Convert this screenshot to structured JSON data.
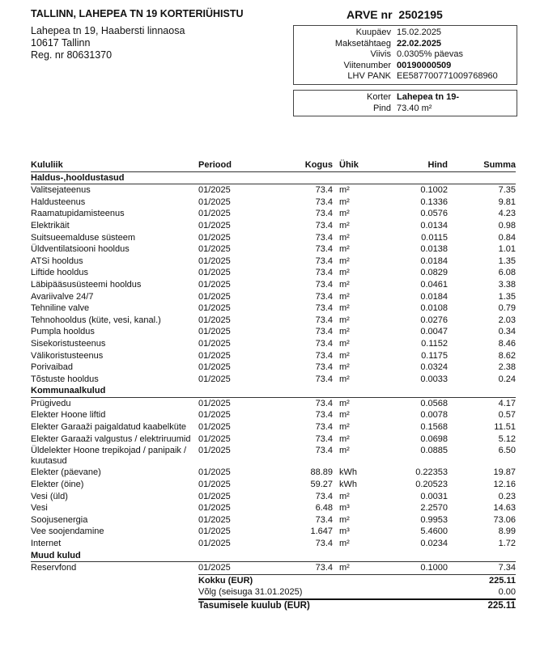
{
  "header": {
    "org": "TALLINN, LAHEPEA TN 19 KORTERIÜHISTU",
    "address": [
      "Lahepea tn 19, Haabersti linnaosa",
      "10617 Tallinn",
      "Reg. nr 80631370"
    ],
    "invoice_label": "ARVE nr",
    "invoice_number": "2502195"
  },
  "info": [
    {
      "label": "Kuupäev",
      "value": "15.02.2025"
    },
    {
      "label": "Maksetähtaeg",
      "value": "22.02.2025",
      "bold": true
    },
    {
      "label": "Viivis",
      "value": "0.0305% päevas"
    },
    {
      "label": "Viitenumber",
      "value": "00190000509",
      "bold": true
    },
    {
      "label": "LHV PANK",
      "value": "EE587700771009768960"
    }
  ],
  "apartment": [
    {
      "label": "Korter",
      "value": "Lahepea tn 19-",
      "bold": true
    },
    {
      "label": "Pind",
      "value": "73.40 m²"
    }
  ],
  "table": {
    "columns": [
      "Kululiik",
      "Periood",
      "Kogus",
      "Ühik",
      "Hind",
      "Summa"
    ],
    "sections": [
      {
        "title": "Haldus-,hooldustasud",
        "rows": [
          [
            "Valitsejateenus",
            "01/2025",
            "73.4",
            "m²",
            "0.1002",
            "7.35"
          ],
          [
            "Haldusteenus",
            "01/2025",
            "73.4",
            "m²",
            "0.1336",
            "9.81"
          ],
          [
            "Raamatupidamisteenus",
            "01/2025",
            "73.4",
            "m²",
            "0.0576",
            "4.23"
          ],
          [
            "Elektrikäit",
            "01/2025",
            "73.4",
            "m²",
            "0.0134",
            "0.98"
          ],
          [
            "Suitsueemalduse süsteem",
            "01/2025",
            "73.4",
            "m²",
            "0.0115",
            "0.84"
          ],
          [
            "Üldventilatsiooni hooldus",
            "01/2025",
            "73.4",
            "m²",
            "0.0138",
            "1.01"
          ],
          [
            "ATSi hooldus",
            "01/2025",
            "73.4",
            "m²",
            "0.0184",
            "1.35"
          ],
          [
            "Liftide hooldus",
            "01/2025",
            "73.4",
            "m²",
            "0.0829",
            "6.08"
          ],
          [
            "Läbipääsusüsteemi hooldus",
            "01/2025",
            "73.4",
            "m²",
            "0.0461",
            "3.38"
          ],
          [
            "Avariivalve 24/7",
            "01/2025",
            "73.4",
            "m²",
            "0.0184",
            "1.35"
          ],
          [
            "Tehniline valve",
            "01/2025",
            "73.4",
            "m²",
            "0.0108",
            "0.79"
          ],
          [
            "Tehnohooldus (küte, vesi, kanal.)",
            "01/2025",
            "73.4",
            "m²",
            "0.0276",
            "2.03"
          ],
          [
            "Pumpla hooldus",
            "01/2025",
            "73.4",
            "m²",
            "0.0047",
            "0.34"
          ],
          [
            "Sisekoristusteenus",
            "01/2025",
            "73.4",
            "m²",
            "0.1152",
            "8.46"
          ],
          [
            "Välikoristusteenus",
            "01/2025",
            "73.4",
            "m²",
            "0.1175",
            "8.62"
          ],
          [
            "Porivaibad",
            "01/2025",
            "73.4",
            "m²",
            "0.0324",
            "2.38"
          ],
          [
            "Tõstuste hooldus",
            "01/2025",
            "73.4",
            "m²",
            "0.0033",
            "0.24"
          ]
        ]
      },
      {
        "title": "Kommunaalkulud",
        "rows": [
          [
            "Prügivedu",
            "01/2025",
            "73.4",
            "m²",
            "0.0568",
            "4.17"
          ],
          [
            "Elekter Hoone liftid",
            "01/2025",
            "73.4",
            "m²",
            "0.0078",
            "0.57"
          ],
          [
            "Elekter Garaaži paigaldatud kaabelküte",
            "01/2025",
            "73.4",
            "m²",
            "0.1568",
            "11.51"
          ],
          [
            "Elekter Garaaži valgustus / elektriruumid",
            "01/2025",
            "73.4",
            "m²",
            "0.0698",
            "5.12"
          ],
          [
            "Üldelekter Hoone trepikojad / panipaik / kuutasud",
            "01/2025",
            "73.4",
            "m²",
            "0.0885",
            "6.50"
          ],
          [
            "Elekter (päevane)",
            "01/2025",
            "88.89",
            "kWh",
            "0.22353",
            "19.87"
          ],
          [
            "Elekter (öine)",
            "01/2025",
            "59.27",
            "kWh",
            "0.20523",
            "12.16"
          ],
          [
            "Vesi (üld)",
            "01/2025",
            "73.4",
            "m²",
            "0.0031",
            "0.23"
          ],
          [
            "Vesi",
            "01/2025",
            "6.48",
            "m³",
            "2.2570",
            "14.63"
          ],
          [
            "Soojusenergia",
            "01/2025",
            "73.4",
            "m²",
            "0.9953",
            "73.06"
          ],
          [
            "Vee soojendamine",
            "01/2025",
            "1.647",
            "m³",
            "5.4600",
            "8.99"
          ],
          [
            "Internet",
            "01/2025",
            "73.4",
            "m²",
            "0.0234",
            "1.72"
          ]
        ]
      },
      {
        "title": "Muud kulud",
        "rows": [
          [
            "Reservfond",
            "01/2025",
            "73.4",
            "m²",
            "0.1000",
            "7.34"
          ]
        ]
      }
    ]
  },
  "totals": [
    {
      "label": "Kokku (EUR)",
      "value": "225.11",
      "bold": true
    },
    {
      "label": "Võlg (seisuga 31.01.2025)",
      "value": "0.00"
    },
    {
      "label": "Tasumisele kuulub (EUR)",
      "value": "225.11",
      "bold": true,
      "grand": true
    }
  ]
}
